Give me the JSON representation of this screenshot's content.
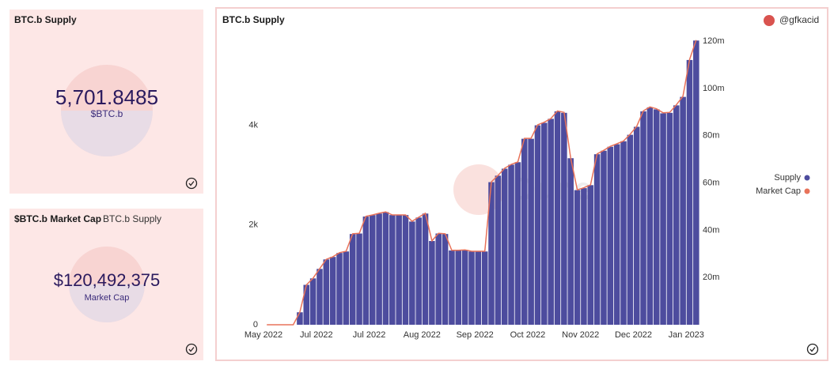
{
  "cards": [
    {
      "title": "BTC.b Supply",
      "value": 5701.8485,
      "value_label": "5,701.8485",
      "subtitle": "$BTC.b"
    },
    {
      "title": "$BTC.b Market Cap",
      "tab": "BTC.b Supply",
      "value": 120492375,
      "value_label": "$120,492,375",
      "subtitle": "Market Cap"
    }
  ],
  "author": "@gfkacid",
  "watermark": "Dune",
  "chart_data": {
    "type": "bar",
    "title": "BTC.b Supply",
    "categories": [
      "May 2022",
      null,
      null,
      null,
      null,
      null,
      null,
      null,
      "Jul 2022",
      null,
      null,
      null,
      null,
      null,
      null,
      null,
      "Jul 2022",
      null,
      null,
      null,
      null,
      null,
      null,
      null,
      "Aug 2022",
      null,
      null,
      null,
      null,
      null,
      null,
      null,
      "Sep 2022",
      null,
      null,
      null,
      null,
      null,
      null,
      null,
      "Oct 2022",
      null,
      null,
      null,
      null,
      null,
      null,
      null,
      "Nov 2022",
      null,
      null,
      null,
      null,
      null,
      null,
      null,
      "Dec 2022",
      null,
      null,
      null,
      null,
      null,
      null,
      null,
      "Jan 2023",
      null
    ],
    "series": [
      {
        "name": "Supply",
        "color": "#4d4c9e",
        "values": [
          0,
          0,
          0,
          0,
          0,
          250,
          800,
          930,
          1120,
          1310,
          1360,
          1440,
          1470,
          1820,
          1830,
          2170,
          2200,
          2230,
          2260,
          2200,
          2200,
          2200,
          2070,
          2150,
          2230,
          1680,
          1830,
          1820,
          1490,
          1490,
          1500,
          1470,
          1470,
          1470,
          2860,
          2990,
          3130,
          3210,
          3260,
          3730,
          3730,
          4000,
          4050,
          4130,
          4280,
          4250,
          3340,
          2700,
          2740,
          2800,
          3420,
          3490,
          3570,
          3620,
          3680,
          3810,
          3970,
          4280,
          4360,
          4320,
          4240,
          4250,
          4400,
          4570,
          5310,
          5700
        ]
      },
      {
        "name": "Market Cap",
        "color": "#e8735a",
        "axis": "y2",
        "values": [
          0,
          0,
          0,
          0,
          0,
          5290000,
          16900000,
          19700000,
          23700000,
          27700000,
          28800000,
          30500000,
          31100000,
          38500000,
          38700000,
          45900000,
          46500000,
          47200000,
          47800000,
          46500000,
          46500000,
          46500000,
          43800000,
          45500000,
          47200000,
          35500000,
          38700000,
          38500000,
          31500000,
          31500000,
          31700000,
          31100000,
          31100000,
          31100000,
          60500000,
          63200000,
          66200000,
          67900000,
          68900000,
          78900000,
          78900000,
          84600000,
          85700000,
          87300000,
          90500000,
          89900000,
          70600000,
          57100000,
          58000000,
          59200000,
          72300000,
          73800000,
          75500000,
          76600000,
          77800000,
          80600000,
          84000000,
          90500000,
          92200000,
          91400000,
          89700000,
          89900000,
          93100000,
          96700000,
          112300000,
          120500000
        ]
      }
    ],
    "ylim": [
      0,
      5800
    ],
    "yticks": [
      0,
      {
        "value": 2000,
        "label": "2k"
      },
      {
        "value": 4000,
        "label": "4k"
      }
    ],
    "y2lim": [
      0,
      122400000
    ],
    "y2ticks": [
      {
        "value": 20000000,
        "label": "20m"
      },
      {
        "value": 40000000,
        "label": "40m"
      },
      {
        "value": 60000000,
        "label": "60m"
      },
      {
        "value": 80000000,
        "label": "80m"
      },
      {
        "value": 100000000,
        "label": "100m"
      },
      {
        "value": 120000000,
        "label": "120m"
      }
    ],
    "legend": "right"
  }
}
